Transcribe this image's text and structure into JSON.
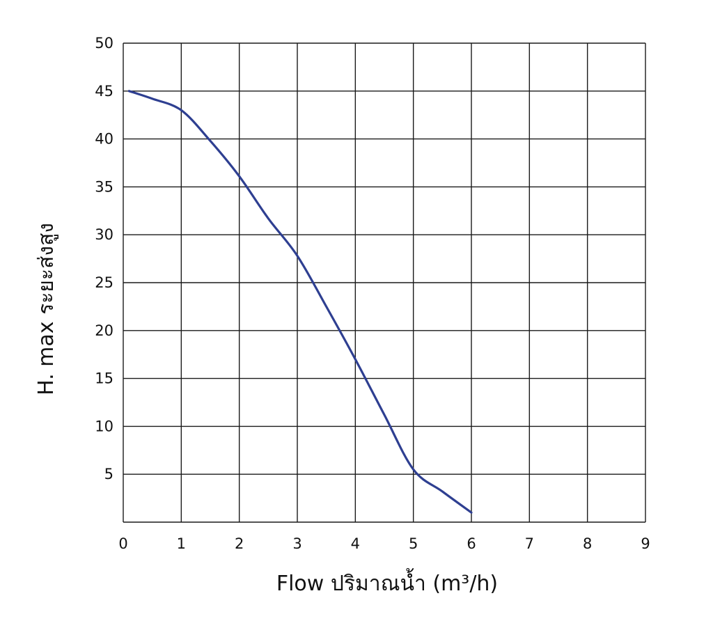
{
  "chart_data": {
    "type": "line",
    "xlabel": "Flow ปริมาณน้ำ (m³/h)",
    "ylabel": "H. max ระยะส่งสูง",
    "xlim": [
      0,
      9
    ],
    "ylim": [
      0,
      50
    ],
    "x_ticks": [
      "0",
      "1",
      "2",
      "3",
      "4",
      "5",
      "6",
      "7",
      "8",
      "9"
    ],
    "y_ticks": [
      "5",
      "10",
      "15",
      "20",
      "25",
      "30",
      "35",
      "40",
      "45",
      "50"
    ],
    "grid": true,
    "series": [
      {
        "color": "#2e3f91",
        "x": [
          0.1,
          0.5,
          1.0,
          1.5,
          2.0,
          2.5,
          3.0,
          3.5,
          4.0,
          4.5,
          5.0,
          5.5,
          6.0
        ],
        "y": [
          45,
          44.2,
          43,
          39.8,
          36.1,
          31.7,
          27.8,
          22.5,
          17,
          11.2,
          5.5,
          3.2,
          1
        ]
      }
    ]
  }
}
